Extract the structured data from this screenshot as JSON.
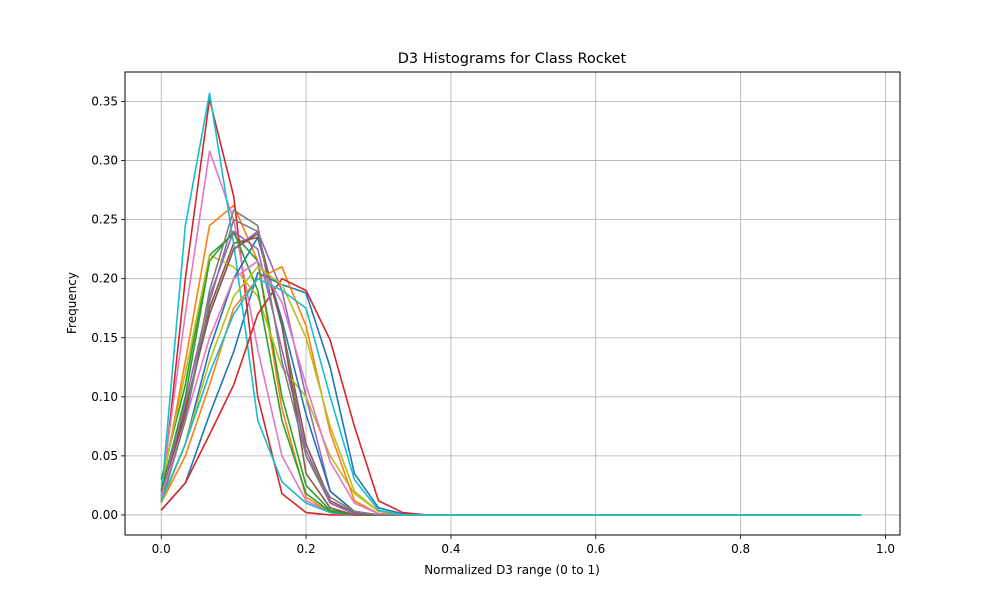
{
  "chart_data": {
    "type": "line",
    "title": "D3 Histograms for Class Rocket",
    "xlabel": "Normalized D3 range (0 to 1)",
    "ylabel": "Frequency",
    "xlim": [
      -0.05,
      1.02
    ],
    "ylim": [
      -0.017,
      0.375
    ],
    "xticks": [
      0.0,
      0.2,
      0.4,
      0.6,
      0.8,
      1.0
    ],
    "xtick_labels": [
      "0.0",
      "0.2",
      "0.4",
      "0.6",
      "0.8",
      "1.0"
    ],
    "yticks": [
      0.0,
      0.05,
      0.1,
      0.15,
      0.2,
      0.25,
      0.3,
      0.35
    ],
    "ytick_labels": [
      "0.00",
      "0.05",
      "0.10",
      "0.15",
      "0.20",
      "0.25",
      "0.30",
      "0.35"
    ],
    "grid": true,
    "legend": false,
    "x": [
      0.0,
      0.0333,
      0.0667,
      0.1,
      0.1333,
      0.1667,
      0.2,
      0.2333,
      0.2667,
      0.3,
      0.3333,
      0.3667,
      0.4,
      0.4333,
      0.4667,
      0.5,
      0.5333,
      0.5667,
      0.6,
      0.6333,
      0.6667,
      0.7,
      0.7333,
      0.7667,
      0.8,
      0.8333,
      0.8667,
      0.9,
      0.9333,
      0.9667
    ],
    "series": [
      {
        "color": "#1f77b4",
        "values": [
          0.004,
          0.027,
          0.085,
          0.138,
          0.205,
          0.195,
          0.188,
          0.125,
          0.035,
          0.006,
          0.001,
          0.0,
          0.0,
          0.0,
          0.0,
          0.0,
          0.0,
          0.0,
          0.0,
          0.0,
          0.0,
          0.0,
          0.0,
          0.0,
          0.0,
          0.0,
          0.0,
          0.0,
          0.0,
          0.0
        ]
      },
      {
        "color": "#ff7f0e",
        "values": [
          0.02,
          0.13,
          0.245,
          0.262,
          0.215,
          0.09,
          0.015,
          0.002,
          0.0,
          0.0,
          0.0,
          0.0,
          0.0,
          0.0,
          0.0,
          0.0,
          0.0,
          0.0,
          0.0,
          0.0,
          0.0,
          0.0,
          0.0,
          0.0,
          0.0,
          0.0,
          0.0,
          0.0,
          0.0,
          0.0
        ]
      },
      {
        "color": "#2ca02c",
        "values": [
          0.03,
          0.11,
          0.22,
          0.238,
          0.215,
          0.1,
          0.025,
          0.004,
          0.0,
          0.0,
          0.0,
          0.0,
          0.0,
          0.0,
          0.0,
          0.0,
          0.0,
          0.0,
          0.0,
          0.0,
          0.0,
          0.0,
          0.0,
          0.0,
          0.0,
          0.0,
          0.0,
          0.0,
          0.0,
          0.0
        ]
      },
      {
        "color": "#d62728",
        "values": [
          0.01,
          0.2,
          0.352,
          0.27,
          0.1,
          0.018,
          0.002,
          0.0,
          0.0,
          0.0,
          0.0,
          0.0,
          0.0,
          0.0,
          0.0,
          0.0,
          0.0,
          0.0,
          0.0,
          0.0,
          0.0,
          0.0,
          0.0,
          0.0,
          0.0,
          0.0,
          0.0,
          0.0,
          0.0,
          0.0
        ]
      },
      {
        "color": "#9467bd",
        "values": [
          0.015,
          0.09,
          0.17,
          0.225,
          0.24,
          0.19,
          0.1,
          0.02,
          0.003,
          0.0,
          0.0,
          0.0,
          0.0,
          0.0,
          0.0,
          0.0,
          0.0,
          0.0,
          0.0,
          0.0,
          0.0,
          0.0,
          0.0,
          0.0,
          0.0,
          0.0,
          0.0,
          0.0,
          0.0,
          0.0
        ]
      },
      {
        "color": "#8c564b",
        "values": [
          0.012,
          0.085,
          0.175,
          0.23,
          0.235,
          0.16,
          0.06,
          0.012,
          0.002,
          0.0,
          0.0,
          0.0,
          0.0,
          0.0,
          0.0,
          0.0,
          0.0,
          0.0,
          0.0,
          0.0,
          0.0,
          0.0,
          0.0,
          0.0,
          0.0,
          0.0,
          0.0,
          0.0,
          0.0,
          0.0
        ]
      },
      {
        "color": "#e377c2",
        "values": [
          0.02,
          0.17,
          0.308,
          0.25,
          0.14,
          0.05,
          0.012,
          0.002,
          0.0,
          0.0,
          0.0,
          0.0,
          0.0,
          0.0,
          0.0,
          0.0,
          0.0,
          0.0,
          0.0,
          0.0,
          0.0,
          0.0,
          0.0,
          0.0,
          0.0,
          0.0,
          0.0,
          0.0,
          0.0,
          0.0
        ]
      },
      {
        "color": "#7f7f7f",
        "values": [
          0.01,
          0.08,
          0.18,
          0.25,
          0.24,
          0.16,
          0.05,
          0.01,
          0.001,
          0.0,
          0.0,
          0.0,
          0.0,
          0.0,
          0.0,
          0.0,
          0.0,
          0.0,
          0.0,
          0.0,
          0.0,
          0.0,
          0.0,
          0.0,
          0.0,
          0.0,
          0.0,
          0.0,
          0.0,
          0.0
        ]
      },
      {
        "color": "#bcbd22",
        "values": [
          0.025,
          0.12,
          0.22,
          0.21,
          0.185,
          0.125,
          0.1,
          0.05,
          0.018,
          0.003,
          0.0,
          0.0,
          0.0,
          0.0,
          0.0,
          0.0,
          0.0,
          0.0,
          0.0,
          0.0,
          0.0,
          0.0,
          0.0,
          0.0,
          0.0,
          0.0,
          0.0,
          0.0,
          0.0,
          0.0
        ]
      },
      {
        "color": "#17becf",
        "values": [
          0.015,
          0.245,
          0.357,
          0.23,
          0.08,
          0.028,
          0.01,
          0.002,
          0.0,
          0.0,
          0.0,
          0.0,
          0.0,
          0.0,
          0.0,
          0.0,
          0.0,
          0.0,
          0.0,
          0.0,
          0.0,
          0.0,
          0.0,
          0.0,
          0.0,
          0.0,
          0.0,
          0.0,
          0.0,
          0.0
        ]
      },
      {
        "color": "#1f77b4",
        "values": [
          0.01,
          0.06,
          0.14,
          0.2,
          0.235,
          0.165,
          0.085,
          0.02,
          0.003,
          0.0,
          0.0,
          0.0,
          0.0,
          0.0,
          0.0,
          0.0,
          0.0,
          0.0,
          0.0,
          0.0,
          0.0,
          0.0,
          0.0,
          0.0,
          0.0,
          0.0,
          0.0,
          0.0,
          0.0,
          0.0
        ]
      },
      {
        "color": "#ff7f0e",
        "values": [
          0.01,
          0.05,
          0.11,
          0.175,
          0.2,
          0.21,
          0.16,
          0.07,
          0.012,
          0.001,
          0.0,
          0.0,
          0.0,
          0.0,
          0.0,
          0.0,
          0.0,
          0.0,
          0.0,
          0.0,
          0.0,
          0.0,
          0.0,
          0.0,
          0.0,
          0.0,
          0.0,
          0.0,
          0.0,
          0.0
        ]
      },
      {
        "color": "#2ca02c",
        "values": [
          0.02,
          0.1,
          0.215,
          0.24,
          0.19,
          0.08,
          0.018,
          0.003,
          0.0,
          0.0,
          0.0,
          0.0,
          0.0,
          0.0,
          0.0,
          0.0,
          0.0,
          0.0,
          0.0,
          0.0,
          0.0,
          0.0,
          0.0,
          0.0,
          0.0,
          0.0,
          0.0,
          0.0,
          0.0,
          0.0
        ]
      },
      {
        "color": "#d62728",
        "values": [
          0.004,
          0.027,
          0.068,
          0.11,
          0.17,
          0.2,
          0.19,
          0.148,
          0.075,
          0.012,
          0.002,
          0.0,
          0.0,
          0.0,
          0.0,
          0.0,
          0.0,
          0.0,
          0.0,
          0.0,
          0.0,
          0.0,
          0.0,
          0.0,
          0.0,
          0.0,
          0.0,
          0.0,
          0.0,
          0.0
        ]
      },
      {
        "color": "#9467bd",
        "values": [
          0.015,
          0.095,
          0.185,
          0.24,
          0.225,
          0.14,
          0.055,
          0.01,
          0.001,
          0.0,
          0.0,
          0.0,
          0.0,
          0.0,
          0.0,
          0.0,
          0.0,
          0.0,
          0.0,
          0.0,
          0.0,
          0.0,
          0.0,
          0.0,
          0.0,
          0.0,
          0.0,
          0.0,
          0.0,
          0.0
        ]
      },
      {
        "color": "#8c564b",
        "values": [
          0.012,
          0.09,
          0.17,
          0.225,
          0.238,
          0.16,
          0.035,
          0.006,
          0.0,
          0.0,
          0.0,
          0.0,
          0.0,
          0.0,
          0.0,
          0.0,
          0.0,
          0.0,
          0.0,
          0.0,
          0.0,
          0.0,
          0.0,
          0.0,
          0.0,
          0.0,
          0.0,
          0.0,
          0.0,
          0.0
        ]
      },
      {
        "color": "#e377c2",
        "values": [
          0.015,
          0.08,
          0.15,
          0.2,
          0.215,
          0.18,
          0.11,
          0.045,
          0.01,
          0.001,
          0.0,
          0.0,
          0.0,
          0.0,
          0.0,
          0.0,
          0.0,
          0.0,
          0.0,
          0.0,
          0.0,
          0.0,
          0.0,
          0.0,
          0.0,
          0.0,
          0.0,
          0.0,
          0.0,
          0.0
        ]
      },
      {
        "color": "#7f7f7f",
        "values": [
          0.01,
          0.08,
          0.19,
          0.258,
          0.245,
          0.13,
          0.05,
          0.015,
          0.003,
          0.0,
          0.0,
          0.0,
          0.0,
          0.0,
          0.0,
          0.0,
          0.0,
          0.0,
          0.0,
          0.0,
          0.0,
          0.0,
          0.0,
          0.0,
          0.0,
          0.0,
          0.0,
          0.0,
          0.0,
          0.0
        ]
      },
      {
        "color": "#bcbd22",
        "values": [
          0.01,
          0.06,
          0.13,
          0.185,
          0.21,
          0.195,
          0.15,
          0.075,
          0.02,
          0.003,
          0.0,
          0.0,
          0.0,
          0.0,
          0.0,
          0.0,
          0.0,
          0.0,
          0.0,
          0.0,
          0.0,
          0.0,
          0.0,
          0.0,
          0.0,
          0.0,
          0.0,
          0.0,
          0.0,
          0.0
        ]
      },
      {
        "color": "#17becf",
        "values": [
          0.012,
          0.06,
          0.12,
          0.17,
          0.2,
          0.19,
          0.175,
          0.1,
          0.03,
          0.004,
          0.0,
          0.0,
          0.0,
          0.0,
          0.0,
          0.0,
          0.0,
          0.0,
          0.0,
          0.0,
          0.0,
          0.0,
          0.0,
          0.0,
          0.0,
          0.0,
          0.0,
          0.0,
          0.0,
          0.0
        ]
      }
    ]
  }
}
